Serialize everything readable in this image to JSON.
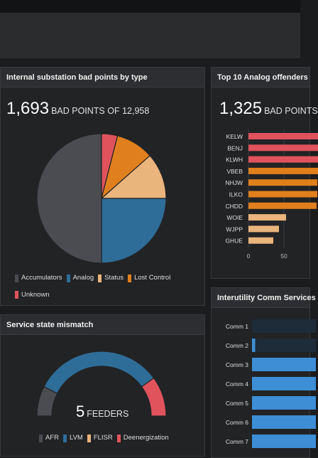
{
  "panels": {
    "bad_points": {
      "title": "Internal substation bad points by type",
      "count": "1,693",
      "count_label": "BAD POINTS OF 12,958"
    },
    "analog": {
      "title": "Top 10 Analog offenders",
      "count": "1,325",
      "count_label": "BAD POINTS"
    },
    "service": {
      "title": "Service state mismatch",
      "count": "5",
      "count_label": "FEEDERS"
    },
    "comm": {
      "title": "Interutility Comm Services"
    }
  },
  "chart_data": [
    {
      "id": "bad_points_pie",
      "type": "pie",
      "title": "Internal substation bad points by type",
      "slices": [
        {
          "label": "Accumulators",
          "value": 50,
          "color": "#4a4c51"
        },
        {
          "label": "Analog",
          "value": 25,
          "color": "#2f6d99"
        },
        {
          "label": "Status",
          "value": 11.5,
          "color": "#eab47d"
        },
        {
          "label": "Lost Control",
          "value": 9.5,
          "color": "#e07f1d"
        },
        {
          "label": "Unknown",
          "value": 4,
          "color": "#e0535c"
        }
      ],
      "legend_position": "bottom"
    },
    {
      "id": "analog_bar",
      "type": "bar",
      "orientation": "horizontal",
      "title": "Top 10 Analog offenders",
      "categories": [
        "KELW",
        "BENJ",
        "KLWH",
        "VBEB",
        "NHJW",
        "ILKO",
        "CHDD",
        "WOIE",
        "WJPP",
        "GHUE"
      ],
      "values": [
        100,
        100,
        100,
        98,
        97,
        97,
        96,
        53,
        43,
        35
      ],
      "colors": [
        "#e0535c",
        "#e0535c",
        "#e0535c",
        "#e07f1d",
        "#e07f1d",
        "#e07f1d",
        "#e07f1d",
        "#eab47d",
        "#eab47d",
        "#eab47d"
      ],
      "x_ticks": [
        "0",
        "50"
      ],
      "grid": true
    },
    {
      "id": "service_gauge",
      "type": "pie",
      "title": "Service state mismatch",
      "slices": [
        {
          "label": "AFR",
          "value": 15,
          "color": "#4a4c51"
        },
        {
          "label": "LVM",
          "value": 65,
          "color": "#2f6d99"
        },
        {
          "label": "FLISR",
          "value": 0,
          "color": "#eab47d"
        },
        {
          "label": "Deenergization",
          "value": 20,
          "color": "#e0535c"
        }
      ],
      "legend_position": "bottom"
    },
    {
      "id": "comm_bar",
      "type": "bar",
      "orientation": "horizontal",
      "title": "Interutility Comm Services",
      "categories": [
        "Comm 1",
        "Comm 2",
        "Comm 3",
        "Comm 4",
        "Comm 5",
        "Comm 6",
        "Comm 7"
      ],
      "values": [
        0,
        5,
        100,
        100,
        100,
        100,
        100
      ],
      "bar_color": "#3d8ed4",
      "track_color": "#1e2b38"
    }
  ]
}
